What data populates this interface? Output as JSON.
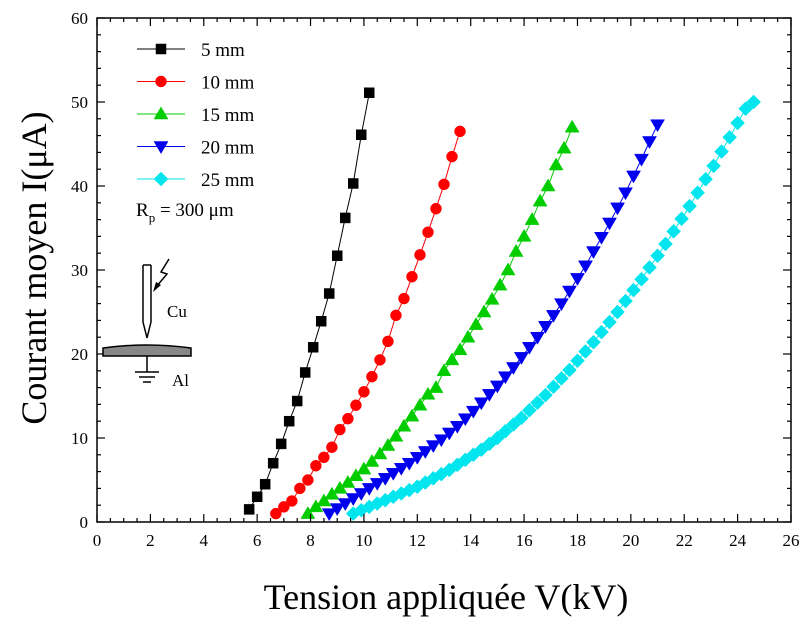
{
  "chart_data": {
    "type": "scatter",
    "xlabel": "Tension appliquée V(kV)",
    "ylabel": "Courant moyen I(μA)",
    "xlim": [
      0,
      26
    ],
    "ylim": [
      0,
      60
    ],
    "xticks": [
      "0",
      "2",
      "4",
      "6",
      "8",
      "10",
      "12",
      "14",
      "16",
      "18",
      "20",
      "22",
      "24",
      "26"
    ],
    "yticks": [
      "0",
      "10",
      "20",
      "30",
      "40",
      "50",
      "60"
    ],
    "legend_position": "top-left",
    "annotation": {
      "prefix": "R",
      "subscript": "p",
      "suffix": " = 300 μm"
    },
    "inset_labels": {
      "needle": "Cu",
      "plate": "Al"
    },
    "series": [
      {
        "name": "5 mm",
        "marker": "square",
        "color": "#000000",
        "x": [
          5.7,
          6.0,
          6.3,
          6.6,
          6.9,
          7.2,
          7.5,
          7.8,
          8.1,
          8.4,
          8.7,
          9.0,
          9.3,
          9.6,
          9.9,
          10.2
        ],
        "y": [
          1.5,
          3.0,
          4.5,
          7.0,
          9.3,
          12.0,
          14.4,
          17.8,
          20.8,
          23.9,
          27.2,
          31.7,
          36.2,
          40.3,
          46.1,
          51.1
        ]
      },
      {
        "name": "10 mm",
        "marker": "circle",
        "color": "#ff0000",
        "x": [
          6.7,
          7.0,
          7.3,
          7.6,
          7.9,
          8.2,
          8.5,
          8.8,
          9.1,
          9.4,
          9.7,
          10.0,
          10.3,
          10.6,
          10.9,
          11.2,
          11.5,
          11.8,
          12.1,
          12.4,
          12.7,
          13.0,
          13.3,
          13.6
        ],
        "y": [
          1.0,
          1.8,
          2.5,
          4.0,
          5.0,
          6.7,
          7.7,
          8.9,
          11.0,
          12.3,
          13.9,
          15.5,
          17.3,
          19.3,
          21.5,
          24.6,
          26.6,
          29.2,
          31.8,
          34.5,
          37.3,
          40.2,
          43.5,
          46.5
        ]
      },
      {
        "name": "15 mm",
        "marker": "triangle-up",
        "color": "#00cc00",
        "x": [
          7.9,
          8.2,
          8.5,
          8.8,
          9.1,
          9.4,
          9.7,
          10.0,
          10.3,
          10.6,
          10.9,
          11.2,
          11.5,
          11.8,
          12.1,
          12.4,
          12.7,
          13.0,
          13.3,
          13.6,
          13.9,
          14.2,
          14.5,
          14.8,
          15.1,
          15.4,
          15.7,
          16.0,
          16.3,
          16.6,
          16.9,
          17.2,
          17.5,
          17.8
        ],
        "y": [
          1.0,
          1.8,
          2.5,
          3.3,
          4.0,
          4.7,
          5.5,
          6.3,
          7.2,
          8.1,
          9.1,
          10.2,
          11.4,
          12.6,
          13.9,
          15.2,
          16.0,
          18.0,
          19.3,
          20.5,
          22.0,
          23.5,
          25.0,
          26.5,
          28.2,
          30.0,
          32.2,
          34.0,
          36.0,
          38.2,
          40.0,
          42.5,
          44.5,
          47.0
        ]
      },
      {
        "name": "20 mm",
        "marker": "triangle-down",
        "color": "#0000ee",
        "x": [
          8.7,
          9.0,
          9.3,
          9.6,
          9.9,
          10.2,
          10.5,
          10.8,
          11.1,
          11.4,
          11.7,
          12.0,
          12.3,
          12.6,
          12.9,
          13.2,
          13.5,
          13.8,
          14.1,
          14.4,
          14.7,
          15.0,
          15.3,
          15.6,
          15.9,
          16.2,
          16.5,
          16.8,
          17.1,
          17.4,
          17.7,
          18.0,
          18.3,
          18.6,
          18.9,
          19.2,
          19.5,
          19.8,
          20.1,
          20.4,
          20.7,
          21.0
        ],
        "y": [
          1.0,
          1.6,
          2.2,
          2.8,
          3.4,
          4.0,
          4.6,
          5.2,
          5.8,
          6.4,
          7.0,
          7.7,
          8.4,
          9.1,
          9.8,
          10.6,
          11.4,
          12.3,
          13.2,
          14.2,
          15.2,
          16.2,
          17.3,
          18.4,
          19.6,
          20.8,
          22.0,
          23.3,
          24.6,
          26.0,
          27.5,
          29.0,
          30.5,
          32.2,
          33.9,
          35.6,
          37.4,
          39.2,
          41.2,
          43.2,
          45.3,
          47.3
        ]
      },
      {
        "name": "25 mm",
        "marker": "diamond",
        "color": "#00e5ee",
        "x": [
          9.6,
          9.9,
          10.2,
          10.5,
          10.8,
          11.1,
          11.4,
          11.7,
          12.0,
          12.3,
          12.6,
          12.9,
          13.2,
          13.5,
          13.8,
          14.1,
          14.4,
          14.7,
          15.0,
          15.3,
          15.6,
          15.9,
          16.2,
          16.5,
          16.8,
          17.1,
          17.4,
          17.7,
          18.0,
          18.3,
          18.6,
          18.9,
          19.2,
          19.5,
          19.8,
          20.1,
          20.4,
          20.7,
          21.0,
          21.3,
          21.6,
          21.9,
          22.2,
          22.5,
          22.8,
          23.1,
          23.4,
          23.7,
          24.0,
          24.3,
          24.6
        ],
        "y": [
          1.0,
          1.4,
          1.8,
          2.2,
          2.6,
          3.0,
          3.4,
          3.8,
          4.2,
          4.7,
          5.2,
          5.7,
          6.2,
          6.8,
          7.4,
          8.0,
          8.6,
          9.3,
          10.0,
          10.8,
          11.6,
          12.4,
          13.3,
          14.2,
          15.1,
          16.1,
          17.1,
          18.1,
          19.2,
          20.3,
          21.4,
          22.6,
          23.8,
          25.0,
          26.3,
          27.6,
          28.9,
          30.3,
          31.7,
          33.1,
          34.6,
          36.1,
          37.6,
          39.2,
          40.8,
          42.4,
          44.1,
          45.8,
          47.5,
          49.2,
          50.0
        ]
      }
    ]
  }
}
